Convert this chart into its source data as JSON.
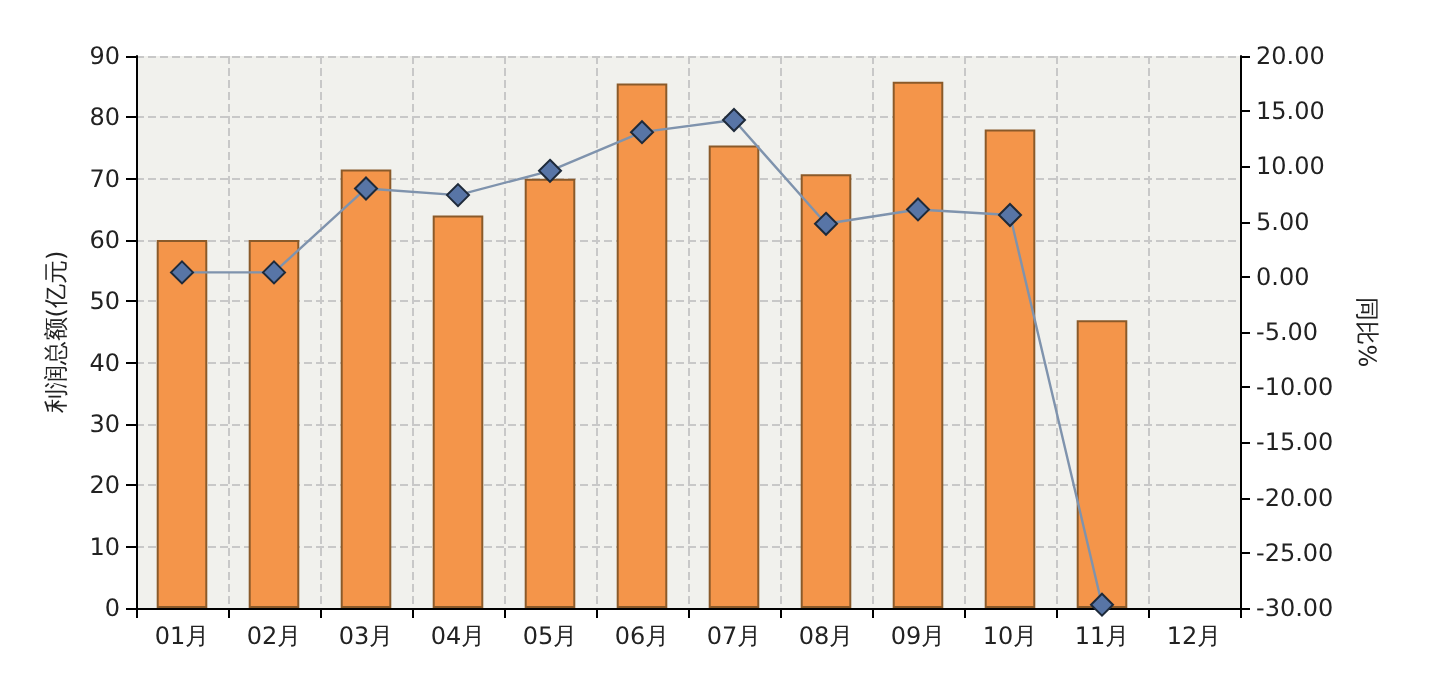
{
  "chart_data": {
    "type": "bar",
    "categories": [
      "01月",
      "02月",
      "03月",
      "04月",
      "05月",
      "06月",
      "07月",
      "08月",
      "09月",
      "10月",
      "11月",
      "12月"
    ],
    "ylabel": "利润总额(亿元)",
    "y2label": "同比%",
    "series": [
      {
        "color": "#f4954a",
        "values": [
          60,
          60,
          71.5,
          64,
          70,
          85.5,
          75.4,
          70.7,
          85.8,
          78,
          46.9,
          null
        ]
      },
      {
        "type": "line",
        "axis": "y2",
        "color": "#5875a6",
        "marker": "diamond",
        "values": [
          0.4,
          0.4,
          8.0,
          7.4,
          9.6,
          13.1,
          14.2,
          4.8,
          6.1,
          5.6,
          -29.7,
          null
        ]
      }
    ],
    "ylim": [
      0,
      90
    ],
    "yticks": [
      0,
      10,
      20,
      30,
      40,
      50,
      60,
      70,
      80,
      90
    ],
    "y2lim": [
      -30,
      20
    ],
    "y2ticks": [
      {
        "value": -30,
        "label": "-30.00"
      },
      {
        "value": -25,
        "label": "-25.00"
      },
      {
        "value": -20,
        "label": "-20.00"
      },
      {
        "value": -15,
        "label": "-15.00"
      },
      {
        "value": -10,
        "label": "-10.00"
      },
      {
        "value": -5,
        "label": "-5.00"
      },
      {
        "value": 0,
        "label": "0.00"
      },
      {
        "value": 5,
        "label": "5.00"
      },
      {
        "value": 10,
        "label": "10.00"
      },
      {
        "value": 15,
        "label": "15.00"
      },
      {
        "value": 20,
        "label": "20.00"
      }
    ],
    "grid": true
  }
}
